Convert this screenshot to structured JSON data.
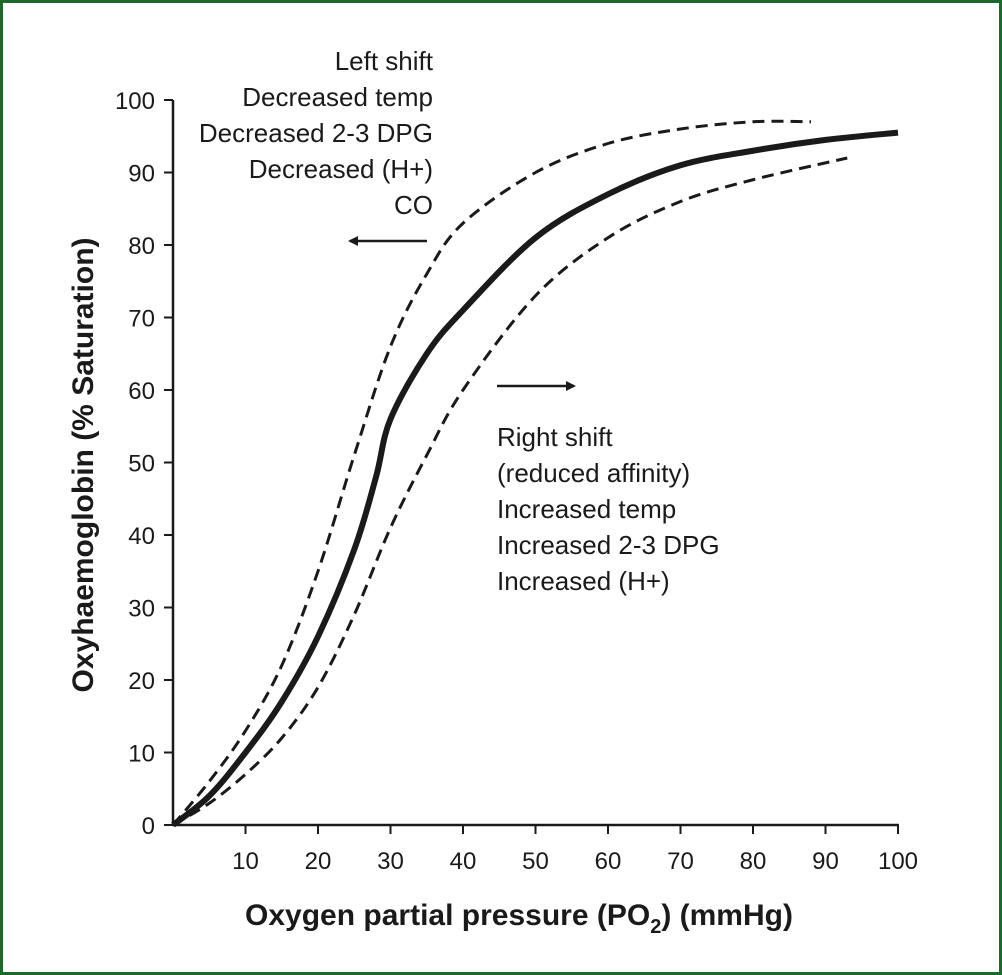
{
  "colors": {
    "border": "#1b6a2c",
    "ink": "#1a1a1a",
    "background": "#ffffff"
  },
  "chart_data": {
    "type": "line",
    "xlabel": "Oxygen partial pressure (PO",
    "xlabel_subscript": "2",
    "xlabel_suffix": ") (mmHg)",
    "ylabel": "Oxyhaemoglobin (% Saturation)",
    "xlim": [
      0,
      100
    ],
    "ylim": [
      0,
      100
    ],
    "x_ticks": [
      10,
      20,
      30,
      40,
      50,
      60,
      70,
      80,
      90,
      100
    ],
    "y_ticks": [
      0,
      10,
      20,
      30,
      40,
      50,
      60,
      70,
      80,
      90,
      100
    ],
    "grid": false,
    "series": [
      {
        "style": "solid",
        "x": [
          0,
          5,
          10,
          15,
          20,
          25,
          28,
          30,
          35,
          40,
          50,
          60,
          70,
          80,
          90,
          100
        ],
        "y": [
          0,
          4,
          10,
          17,
          26,
          38,
          48,
          56,
          65,
          71,
          81,
          87,
          91,
          93,
          94.5,
          95.5
        ]
      },
      {
        "style": "dashed",
        "x": [
          0,
          5,
          10,
          15,
          20,
          25,
          30,
          35,
          40,
          50,
          60,
          70,
          80,
          88
        ],
        "y": [
          0,
          6,
          13,
          22,
          35,
          51,
          66,
          76,
          83,
          90,
          94,
          96,
          97,
          97
        ]
      },
      {
        "style": "dashed",
        "x": [
          0,
          5,
          10,
          15,
          20,
          25,
          30,
          35,
          40,
          50,
          60,
          70,
          80,
          93
        ],
        "y": [
          0,
          3,
          7,
          12,
          19,
          29,
          41,
          51,
          60,
          73,
          81,
          86,
          89,
          92
        ]
      }
    ],
    "annotations": {
      "left_shift": [
        "Left shift",
        "Decreased temp",
        "Decreased 2-3 DPG",
        "Decreased (H+)",
        "CO"
      ],
      "right_shift": [
        "Right shift",
        "(reduced affinity)",
        "Increased temp",
        "Increased 2-3 DPG",
        "Increased (H+)"
      ]
    }
  }
}
